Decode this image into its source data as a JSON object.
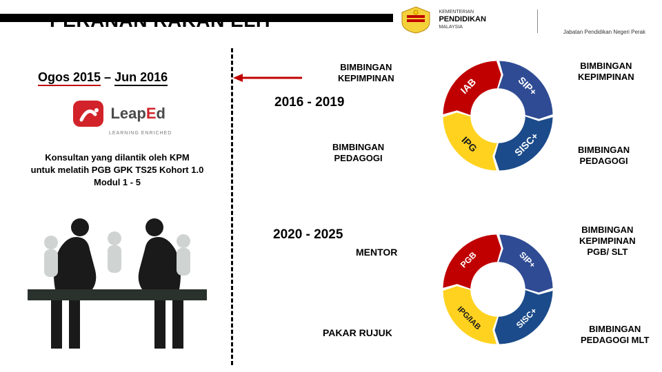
{
  "header": {
    "title": "PERANAN RAKAN ELIT",
    "ministry_line1": "KEMENTERIAN",
    "ministry_line2": "PENDIDIKAN",
    "ministry_line3": "MALAYSIA",
    "subagency": "Jabatan Pendidikan Negeri Perak"
  },
  "phase1": {
    "date_range_a": "Ogos 2015",
    "date_range_sep": " – ",
    "date_range_b": "Jun 2016",
    "brand_part1": "Leap",
    "brand_part2": "E",
    "brand_part3": "d",
    "brand_tag": "LEARNING ENRICHED",
    "desc_l1": "Konsultan yang dilantik oleh KPM",
    "desc_l2": "untuk melatih PGB GPK TS25 Kohort 1.0",
    "desc_l3": "Modul 1 - 5"
  },
  "period1": "2016 - 2019",
  "period2": "2020 - 2025",
  "donut1": {
    "seg_tl": {
      "label": "IAB",
      "color": "#c00000"
    },
    "seg_tr": {
      "label": "SIP+",
      "color": "#2f4b94"
    },
    "seg_br": {
      "label": "SISC+",
      "color": "#1b4b8a"
    },
    "seg_bl": {
      "label": "IPG",
      "color": "#ffd21f"
    },
    "call_tl": "BIMBINGAN\nKEPIMPINAN",
    "call_tr": "BIMBINGAN\nKEPIMPINAN",
    "call_bl": "BIMBINGAN\nPEDAGOGI",
    "call_br": "BIMBINGAN\nPEDAGOGI"
  },
  "donut2": {
    "seg_tl": {
      "label": "PGB",
      "color": "#c00000"
    },
    "seg_tr": {
      "label": "SIP+",
      "color": "#2f4b94"
    },
    "seg_br": {
      "label": "SISC+",
      "color": "#1b4b8a"
    },
    "seg_bl": {
      "label": "IPG/IAB",
      "color": "#ffd21f"
    },
    "call_tl": "MENTOR",
    "call_tr": "BIMBINGAN\nKEPIMPINAN\nPGB/ SLT",
    "call_bl": "PAKAR RUJUK",
    "call_br": "BIMBINGAN\nPEDAGOGI MLT"
  },
  "donut_style": {
    "outer_r": 84,
    "inner_r": 42,
    "gap_deg": 3,
    "bg": "#ffffff"
  },
  "colors": {
    "arrow": "#c00000",
    "text": "#000000"
  }
}
